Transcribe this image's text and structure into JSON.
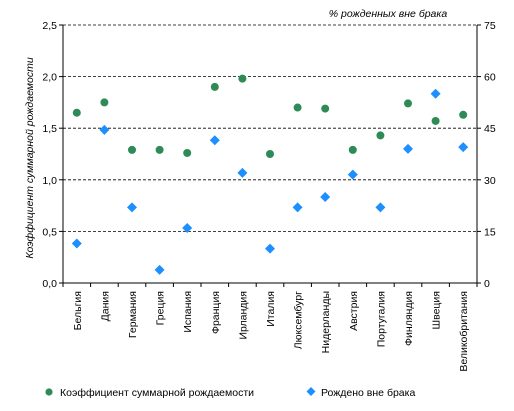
{
  "chart_data": {
    "type": "scatter",
    "categories": [
      "Бельгия",
      "Дания",
      "Германия",
      "Греция",
      "Испания",
      "Франция",
      "Ирландия",
      "Италия",
      "Люксембург",
      "Нидерланды",
      "Австрия",
      "Португалия",
      "Финляндия",
      "Швеция",
      "Великобритания"
    ],
    "series": [
      {
        "name": "Коэффициент суммарной рождаемости",
        "axis": "left",
        "marker": "circle",
        "color": "#2e8b57",
        "values": [
          1.65,
          1.75,
          1.29,
          1.29,
          1.26,
          1.9,
          1.98,
          1.25,
          1.7,
          1.69,
          1.29,
          1.43,
          1.74,
          1.57,
          1.63
        ]
      },
      {
        "name": "Рождено вне брака",
        "axis": "right",
        "marker": "diamond",
        "color": "#1e8fff",
        "values": [
          11.5,
          44.5,
          22.0,
          3.8,
          16.0,
          41.5,
          32.0,
          10.0,
          22.0,
          25.0,
          31.5,
          22.0,
          39.0,
          55.0,
          39.5
        ]
      }
    ],
    "ylabel": "Коэффициент суммарной рождаемости",
    "y2label": "% рожденных вне брака",
    "ylim": [
      0,
      2.5
    ],
    "y2lim": [
      0,
      75
    ],
    "yticks": [
      "0,0",
      "0,5",
      "1,0",
      "1,5",
      "2,0",
      "2,5"
    ],
    "y2ticks": [
      "0",
      "15",
      "30",
      "45",
      "60",
      "75"
    ],
    "grid": "horizontal dashed",
    "legend_position": "bottom"
  }
}
